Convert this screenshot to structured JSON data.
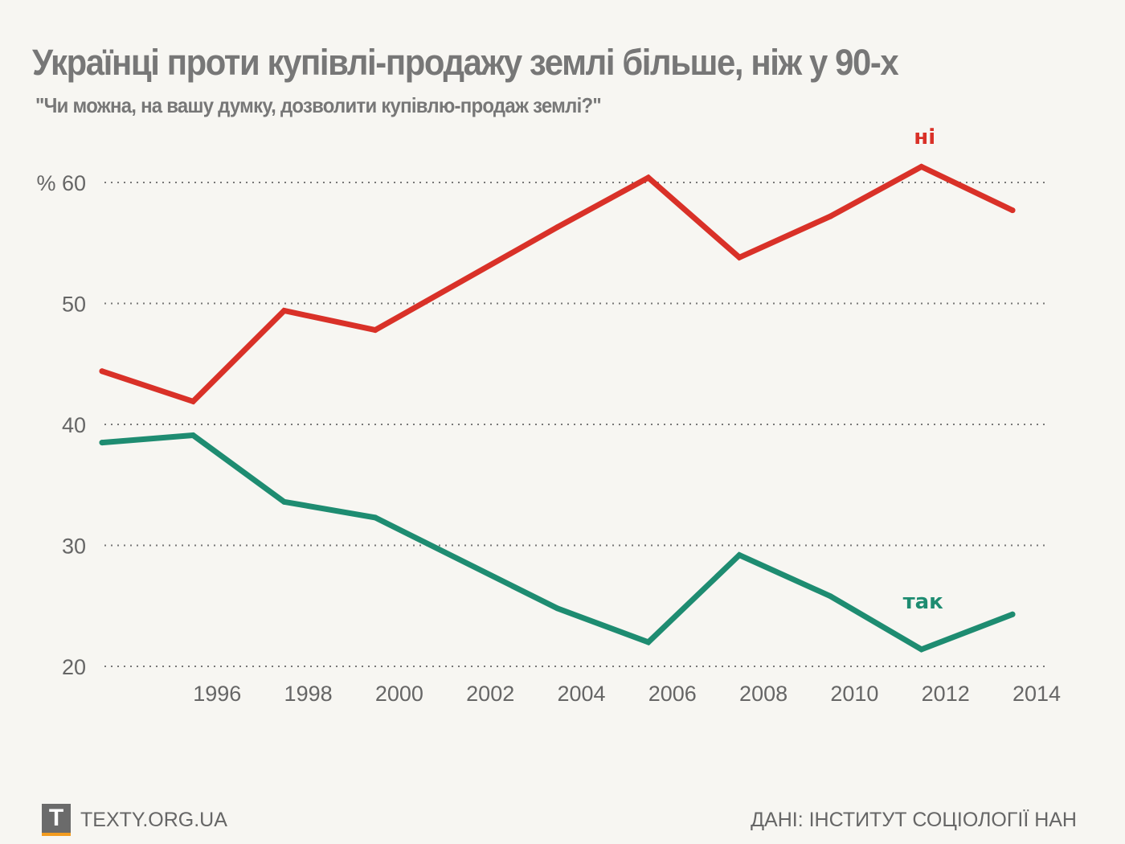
{
  "header": {
    "title": "Українці проти купівлі-продажу землі більше, ніж у 90-х",
    "subtitle": "\"Чи можна, на вашу думку, дозволити купівлю-продаж землі?\""
  },
  "footer": {
    "logo_letter": "T",
    "site": "TEXTY.ORG.UA",
    "source": "ДАНІ: ІНСТИТУТ СОЦІОЛОГІЇ НАН",
    "logo_color": "#6b6b6b",
    "logo_accent": "#f39c1f"
  },
  "chart_data": {
    "type": "line",
    "title": "Українці проти купівлі-продажу землі більше, ніж у 90-х",
    "subtitle": "\"Чи можна, на вашу думку, дозволити купівлю-продаж землі?\"",
    "xlabel": "",
    "ylabel": "%",
    "x": [
      1994,
      1996,
      1998,
      2000,
      2004,
      2006,
      2008,
      2010,
      2012,
      2014
    ],
    "xlim": [
      1994,
      2014
    ],
    "ylim": [
      20,
      60
    ],
    "x_ticks": [
      "1996",
      "1998",
      "2000",
      "2002",
      "2004",
      "2006",
      "2008",
      "2010",
      "2012",
      "2014"
    ],
    "y_ticks": [
      {
        "value": 60,
        "label": "% 60"
      },
      {
        "value": 50,
        "label": "50"
      },
      {
        "value": 40,
        "label": "40"
      },
      {
        "value": 30,
        "label": "30"
      },
      {
        "value": 20,
        "label": "20"
      }
    ],
    "grid": "horizontal-dotted",
    "legend": "inline-labels",
    "series": [
      {
        "name": "ні",
        "color": "#d93128",
        "values": [
          44.4,
          41.9,
          49.4,
          47.8,
          56.3,
          60.4,
          53.8,
          57.2,
          61.3,
          57.7
        ],
        "label_position": "above-2012"
      },
      {
        "name": "так",
        "color": "#1e8c71",
        "values": [
          38.5,
          39.1,
          33.6,
          32.3,
          24.8,
          22.0,
          29.2,
          25.8,
          21.4,
          24.3
        ],
        "label_position": "above-2012"
      }
    ]
  }
}
